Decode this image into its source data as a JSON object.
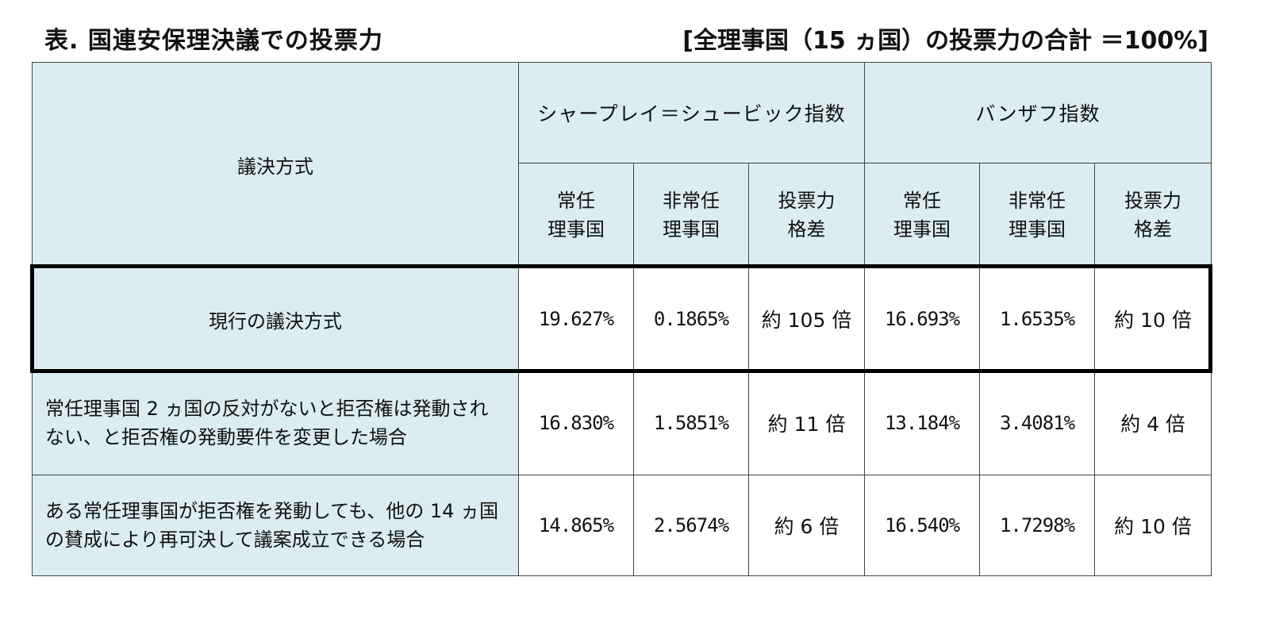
{
  "title": "表.  国連安保理決議での投票力",
  "note": "[全理事国（15 ヵ国）の投票力の合計 ＝100%]",
  "headers": {
    "method": "議決方式",
    "group1": "シャープレイ＝シュービック指数",
    "group2": "バンザフ指数",
    "permanent_1": "常任",
    "permanent_2": "理事国",
    "nonperm_1": "非常任",
    "nonperm_2": "理事国",
    "gap_1": "投票力",
    "gap_2": "格差"
  },
  "rows": [
    {
      "method": "現行の議決方式",
      "ss_perm": "19.627%",
      "ss_nonperm": "0.1865%",
      "ss_gap": "約 105 倍",
      "bz_perm": "16.693%",
      "bz_nonperm": "1.6535%",
      "bz_gap": "約 10 倍"
    },
    {
      "method": "常任理事国 2 ヵ国の反対がないと拒否権は発動されない、と拒否権の発動要件を変更した場合",
      "ss_perm": "16.830%",
      "ss_nonperm": "1.5851%",
      "ss_gap": "約 11 倍",
      "bz_perm": "13.184%",
      "bz_nonperm": "3.4081%",
      "bz_gap": "約 4 倍"
    },
    {
      "method": "ある常任理事国が拒否権を発動しても、他の 14 ヵ国の賛成により再可決して議案成立できる場合",
      "ss_perm": "14.865%",
      "ss_nonperm": "2.5674%",
      "ss_gap": "約 6 倍",
      "bz_perm": "16.540%",
      "bz_nonperm": "1.7298%",
      "bz_gap": "約 10 倍"
    }
  ],
  "colors": {
    "header_bg": "#dbedf2",
    "cell_bg": "#ffffff",
    "highlight_border": "#000000"
  }
}
